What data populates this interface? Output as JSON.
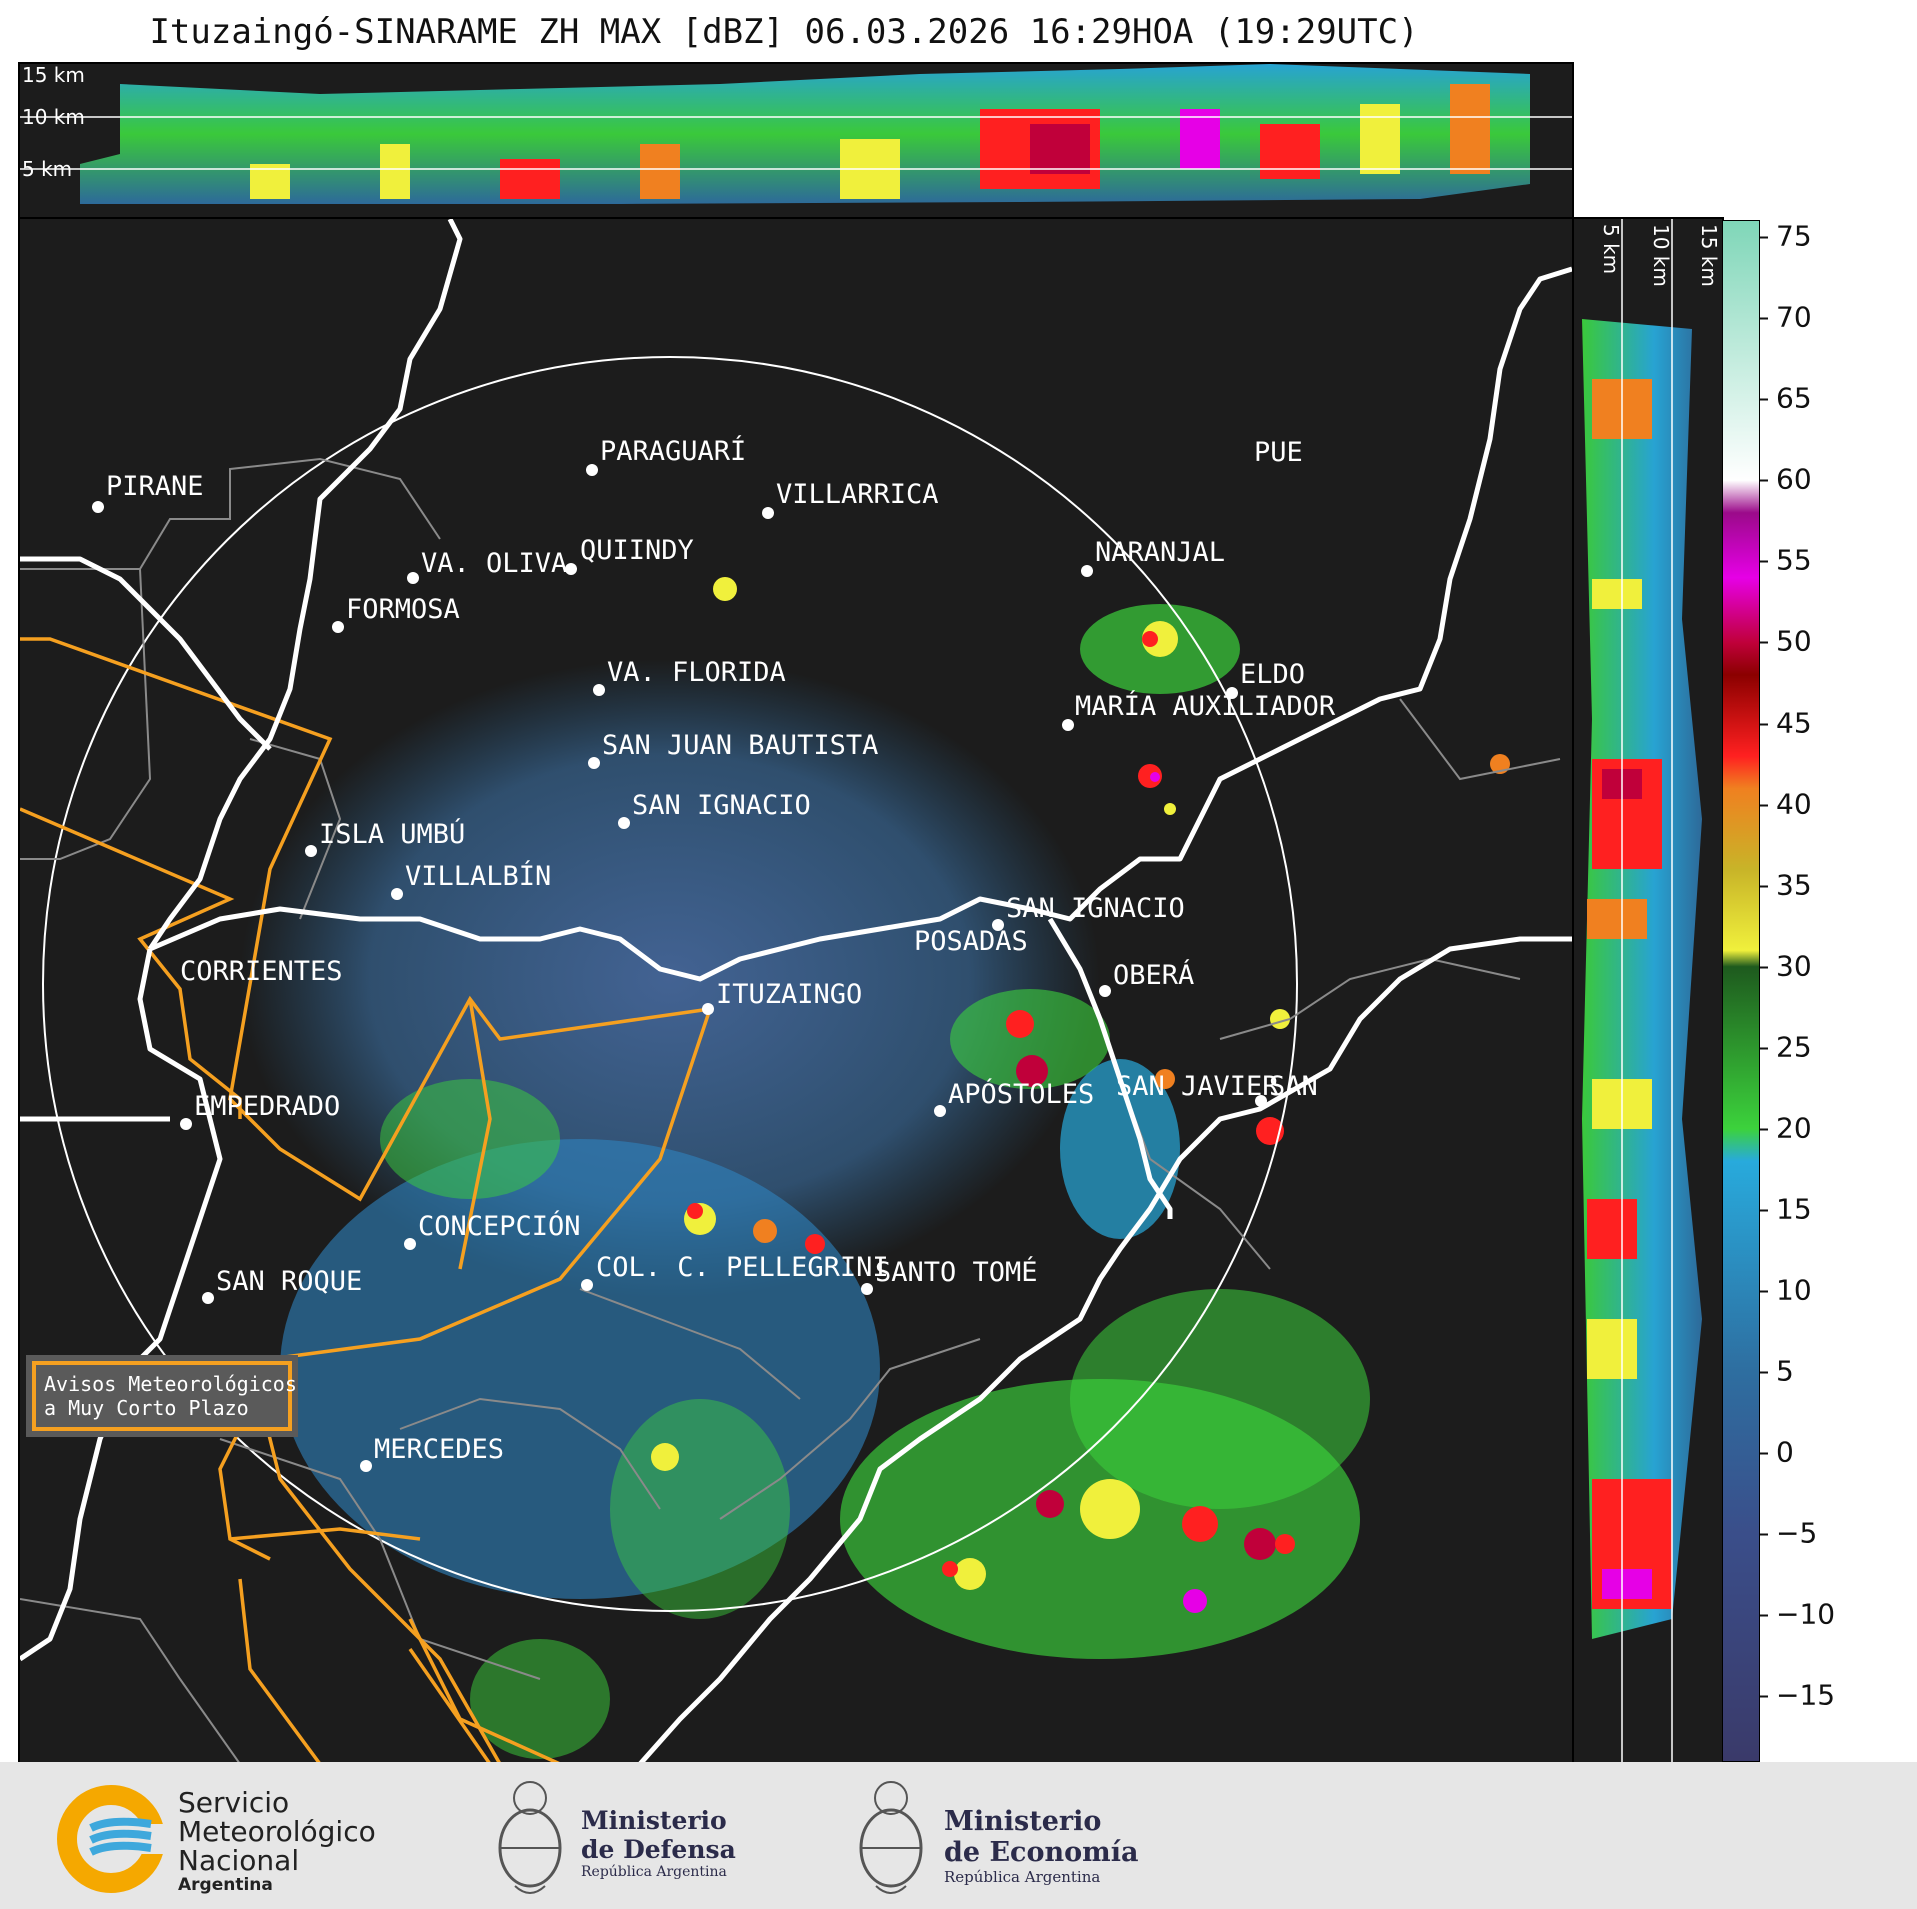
{
  "title": "Ituzaingó-SINARAME ZH MAX [dBZ] 06.03.2026 16:29HOA (19:29UTC)",
  "top_panel": {
    "height_labels": [
      "15 km",
      "10 km",
      "5 km"
    ]
  },
  "right_panel": {
    "height_labels": [
      "5 km",
      "10 km",
      "15 km"
    ]
  },
  "colorbar": {
    "unit": "dBZ",
    "ticks": [
      "75",
      "70",
      "65",
      "60",
      "55",
      "50",
      "45",
      "40",
      "35",
      "30",
      "25",
      "20",
      "15",
      "10",
      "5",
      "0",
      "−5",
      "−10",
      "−15"
    ],
    "stops": [
      {
        "dbz": 76,
        "color": "#7fd6b8"
      },
      {
        "dbz": 60,
        "color": "#ffffff"
      },
      {
        "dbz": 58,
        "color": "#9b0a8a"
      },
      {
        "dbz": 54,
        "color": "#e600e6"
      },
      {
        "dbz": 50,
        "color": "#c0003a"
      },
      {
        "dbz": 48,
        "color": "#8b0000"
      },
      {
        "dbz": 43,
        "color": "#ff2020"
      },
      {
        "dbz": 41,
        "color": "#f08020"
      },
      {
        "dbz": 36,
        "color": "#c8b428"
      },
      {
        "dbz": 31,
        "color": "#f0f03c"
      },
      {
        "dbz": 30,
        "color": "#1e5a1e"
      },
      {
        "dbz": 20,
        "color": "#3cd23c"
      },
      {
        "dbz": 18,
        "color": "#28aadc"
      },
      {
        "dbz": 5,
        "color": "#2e6ea0"
      },
      {
        "dbz": -5,
        "color": "#3a4e8a"
      },
      {
        "dbz": -19,
        "color": "#3a3a6a"
      }
    ]
  },
  "places": [
    {
      "name": "PIRANE"
    },
    {
      "name": "PARAGUARÍ"
    },
    {
      "name": "VILLARRICA"
    },
    {
      "name": "QUIINDY"
    },
    {
      "name": "VA. OLIVA"
    },
    {
      "name": "FORMOSA"
    },
    {
      "name": "NARANJAL"
    },
    {
      "name": "PUE"
    },
    {
      "name": "VA. FLORIDA"
    },
    {
      "name": "ELDO"
    },
    {
      "name": "MARÍA AUXILIADOR"
    },
    {
      "name": "SAN JUAN BAUTISTA"
    },
    {
      "name": "SAN IGNACIO"
    },
    {
      "name": "ISLA UMBÚ"
    },
    {
      "name": "VILLALBÍN"
    },
    {
      "name": "SAN IGNACIO"
    },
    {
      "name": "POSADAS"
    },
    {
      "name": "CORRIENTES"
    },
    {
      "name": "ITUZAINGO"
    },
    {
      "name": "OBERÁ"
    },
    {
      "name": "EMPEDRADO"
    },
    {
      "name": "APÓSTOLES"
    },
    {
      "name": "SAN JAVIER"
    },
    {
      "name": "SAN"
    },
    {
      "name": "CONCEPCIÓN"
    },
    {
      "name": "COL. C. PELLEGRINI"
    },
    {
      "name": "SANTO TOMÉ"
    },
    {
      "name": "SAN ROQUE"
    },
    {
      "name": "MERCEDES"
    }
  ],
  "notice": {
    "line1": "Avisos Meteorológicos",
    "line2": "a Muy Corto Plazo"
  },
  "logos": {
    "smn": {
      "line1": "Servicio",
      "line2": "Meteorológico",
      "line3": "Nacional",
      "line4": "Argentina"
    },
    "defensa": {
      "line1": "Ministerio",
      "line2": "de Defensa",
      "line3": "República Argentina"
    },
    "economia": {
      "line1": "Ministerio",
      "line2": "de Economía",
      "line3": "República Argentina"
    }
  }
}
